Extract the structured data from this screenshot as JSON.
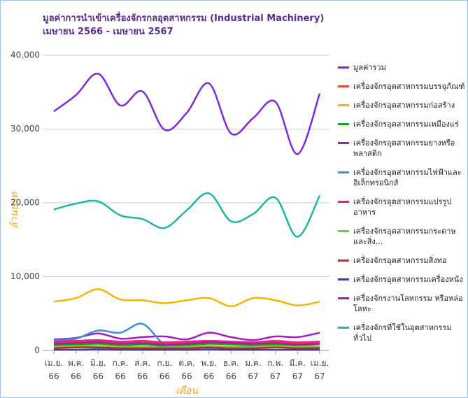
{
  "chart_data": {
    "type": "line",
    "title": "มูลค่าการนำเข้าเครื่องจักรกลอุตสาหกรรม (Industrial Machinery) เมษายน 2566 - เมษายน 2567",
    "x_label": "เดือน",
    "y_label": "ล้านบาท",
    "categories": [
      "เม.ย. 66",
      "พ.ค. 66",
      "มิ.ย. 66",
      "ก.ค. 66",
      "ส.ค. 66",
      "ก.ย. 66",
      "ต.ค. 66",
      "พ.ย. 66",
      "ธ.ค. 66",
      "ม.ค. 67",
      "ก.พ. 67",
      "มี.ค. 67",
      "เม.ย. 67"
    ],
    "ylim": [
      0,
      40000
    ],
    "yticks": [
      0,
      {
        "value": 10000,
        "label": "10,000"
      },
      {
        "value": 20000,
        "label": "20,000"
      },
      {
        "value": 30000,
        "label": "30,000"
      },
      {
        "value": 40000,
        "label": "40,000"
      }
    ],
    "grid": true,
    "series": [
      {
        "name": "มูลค่ารวม",
        "color": "#7b2bd9",
        "values": [
          32400,
          34600,
          37500,
          33200,
          35100,
          29900,
          32200,
          36200,
          29400,
          31500,
          33700,
          26600,
          34800
        ]
      },
      {
        "name": "เครื่องจักรอุตสาหกรรมบรรจุภัณฑ์",
        "color": "#e8472b",
        "values": [
          1000,
          1100,
          1200,
          1000,
          1100,
          900,
          1000,
          1200,
          1100,
          1000,
          1100,
          900,
          1000
        ]
      },
      {
        "name": "เครื่องจักรอุตสาหกรรมก่อสร้าง",
        "color": "#f5b400",
        "values": [
          6600,
          7100,
          8300,
          6900,
          6800,
          6400,
          6800,
          7100,
          6000,
          7100,
          6800,
          6100,
          6600
        ]
      },
      {
        "name": "เครื่องจักรอุตสาหกรรมเหมืองแร่",
        "color": "#1e9e1e",
        "values": [
          700,
          800,
          900,
          700,
          800,
          600,
          700,
          900,
          800,
          700,
          800,
          700,
          900
        ]
      },
      {
        "name": "เครื่องจักรอุตสาหกรรมยางหรือพลาสติก",
        "color": "#a01fb8",
        "values": [
          1500,
          1700,
          2300,
          1600,
          1800,
          1900,
          1500,
          2400,
          1800,
          1400,
          1900,
          1800,
          2400
        ]
      },
      {
        "name": "เครื่องจักรอุตสาหกรรมไฟฟ้าและอิเล็กทรอนิกส์",
        "color": "#3d8fd6",
        "values": [
          1400,
          1600,
          2700,
          2400,
          3600,
          800,
          500,
          500,
          400,
          500,
          500,
          400,
          500
        ]
      },
      {
        "name": "เครื่องจักรอุตสาหกรรมแปรรูปอาหาร",
        "color": "#e91e8c",
        "values": [
          1200,
          1300,
          1400,
          1200,
          1300,
          1100,
          1200,
          1300,
          1200,
          1100,
          1300,
          1100,
          1200
        ]
      },
      {
        "name": "เครื่องจักรอุตสาหกรรมกระดาษและสิ่ง...",
        "color": "#6bd12b",
        "values": [
          500,
          600,
          600,
          500,
          500,
          400,
          500,
          600,
          500,
          500,
          600,
          500,
          600
        ]
      },
      {
        "name": "เครื่องจักรอุตสาหกรรมสิ่งทอ",
        "color": "#c62828",
        "values": [
          300,
          400,
          400,
          300,
          300,
          300,
          300,
          400,
          300,
          300,
          400,
          300,
          300
        ]
      },
      {
        "name": "เครื่องจักรอุตสาหกรรมเครื่องหนัง",
        "color": "#3f3d99",
        "values": [
          100,
          100,
          150,
          100,
          100,
          100,
          100,
          150,
          100,
          100,
          100,
          100,
          100
        ]
      },
      {
        "name": "เครื่องจักรงานโลหกรรม หรือหล่อโลหะ",
        "color": "#a020a0",
        "values": [
          900,
          1000,
          1100,
          900,
          1000,
          800,
          900,
          1100,
          1000,
          900,
          1000,
          800,
          900
        ]
      },
      {
        "name": "เครื่องจักรที่ใช้ในอุตสาหกรรมทั่วไป",
        "color": "#1fb5a3",
        "values": [
          19100,
          19900,
          20200,
          18300,
          17800,
          16600,
          19000,
          21300,
          17500,
          18500,
          20700,
          15400,
          21000
        ]
      }
    ]
  }
}
